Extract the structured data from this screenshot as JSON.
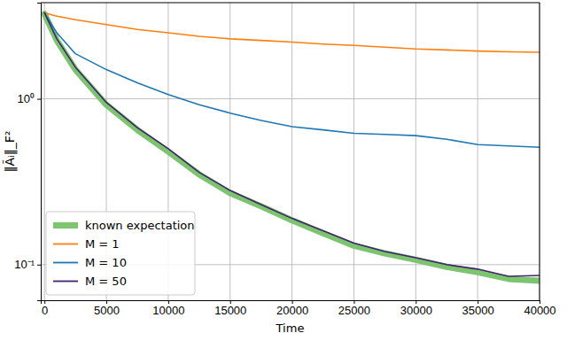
{
  "chart_data": {
    "type": "line",
    "x_label": "Time",
    "y_label": "‖Ãᵢ‖_F²",
    "x": [
      0,
      1000,
      2500,
      5000,
      7500,
      10000,
      12500,
      15000,
      17500,
      20000,
      22500,
      25000,
      27500,
      30000,
      32500,
      35000,
      37500,
      40000
    ],
    "series": [
      {
        "name": "known expectation",
        "color": "#7cc46f",
        "values": [
          3.25,
          2.25,
          1.5,
          0.92,
          0.65,
          0.48,
          0.35,
          0.27,
          0.225,
          0.185,
          0.155,
          0.13,
          0.117,
          0.107,
          0.097,
          0.09,
          0.082,
          0.08
        ]
      },
      {
        "name": "M = 1",
        "color": "#ff7f0e",
        "values": [
          3.3,
          3.15,
          3.0,
          2.8,
          2.62,
          2.5,
          2.38,
          2.3,
          2.25,
          2.2,
          2.14,
          2.1,
          2.05,
          2.0,
          1.97,
          1.94,
          1.92,
          1.91
        ]
      },
      {
        "name": "M = 10",
        "color": "#1f77b4",
        "values": [
          3.3,
          2.5,
          1.87,
          1.5,
          1.25,
          1.06,
          0.92,
          0.82,
          0.74,
          0.68,
          0.65,
          0.62,
          0.61,
          0.6,
          0.57,
          0.53,
          0.52,
          0.51
        ]
      },
      {
        "name": "M = 50",
        "color": "#42236e",
        "values": [
          3.3,
          2.3,
          1.55,
          0.95,
          0.67,
          0.5,
          0.36,
          0.28,
          0.23,
          0.19,
          0.16,
          0.135,
          0.12,
          0.11,
          0.1,
          0.094,
          0.085,
          0.086
        ]
      }
    ],
    "xlim": [
      -300,
      40000
    ],
    "xticks": [
      0,
      5000,
      10000,
      15000,
      20000,
      25000,
      30000,
      35000,
      40000
    ],
    "ylim": [
      0.061,
      3.8
    ],
    "yticks": [
      {
        "value": 0.1,
        "label": "10⁻¹"
      },
      {
        "value": 1,
        "label": "10⁰"
      }
    ],
    "log": "y",
    "grid": true,
    "legend": "lower left"
  }
}
